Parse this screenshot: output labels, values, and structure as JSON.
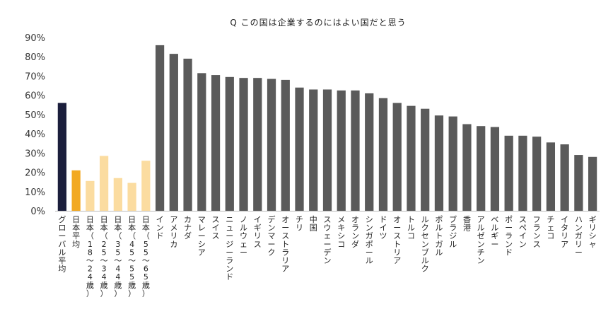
{
  "chart_data": {
    "type": "bar",
    "title": "Q この国は企業するのにはよい国だと思う",
    "xlabel": "",
    "ylabel": "",
    "ylim": [
      0,
      90
    ],
    "yticks": [
      "0%",
      "10%",
      "20%",
      "30%",
      "40%",
      "50%",
      "60%",
      "70%",
      "80%",
      "90%"
    ],
    "grid": false,
    "legend": "none",
    "colors": {
      "global": "#1b1e3c",
      "japan_avg": "#f2a922",
      "japan_age": "#fbdca0",
      "country": "#5a5a5a",
      "axis": "#bbbbbb"
    },
    "categories": [
      "グローバル平均",
      "日本平均",
      "日本（18～24歳）",
      "日本（25～34歳）",
      "日本（35～44歳）",
      "日本（45～55歳）",
      "日本（55～65歳）",
      "インド",
      "アメリカ",
      "カナダ",
      "マレーシア",
      "スイス",
      "ニュージーランド",
      "ノルウェー",
      "イギリス",
      "デンマーク",
      "オーストラリア",
      "チリ",
      "中国",
      "スウェーデン",
      "メキシコ",
      "オランダ",
      "シンガポール",
      "ドイツ",
      "オーストリア",
      "トルコ",
      "ルクセンブルク",
      "ポルトガル",
      "ブラジル",
      "香港",
      "アルゼンチン",
      "ベルギー",
      "ポーランド",
      "スペイン",
      "フランス",
      "チェコ",
      "イタリア",
      "ハンガリー",
      "ギリシャ"
    ],
    "values": [
      56,
      21,
      15.5,
      28.5,
      17,
      14.5,
      26,
      86,
      81.5,
      79,
      71.5,
      70.5,
      69.5,
      69,
      69,
      68.5,
      68,
      64,
      63,
      63,
      62.5,
      62.5,
      61,
      58.5,
      56,
      54.5,
      53,
      49.5,
      49,
      45,
      44,
      43.5,
      39,
      39,
      38.5,
      35.5,
      34.5,
      29,
      28
    ],
    "groups": [
      "global",
      "japan_avg",
      "japan_age",
      "japan_age",
      "japan_age",
      "japan_age",
      "japan_age",
      "country",
      "country",
      "country",
      "country",
      "country",
      "country",
      "country",
      "country",
      "country",
      "country",
      "country",
      "country",
      "country",
      "country",
      "country",
      "country",
      "country",
      "country",
      "country",
      "country",
      "country",
      "country",
      "country",
      "country",
      "country",
      "country",
      "country",
      "country",
      "country",
      "country",
      "country",
      "country"
    ]
  }
}
